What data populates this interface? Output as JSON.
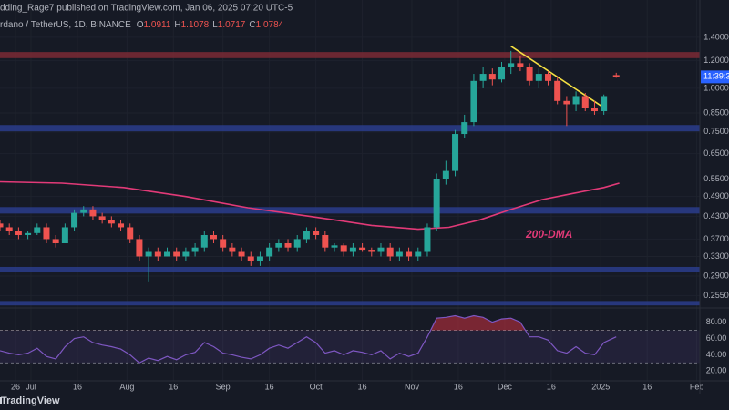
{
  "header": {
    "publisher": "dding_Rage7 published on TradingView.com, Jan 06, 2025 07:20 UTC-5",
    "symbol": "rdano / TetherUS, 1D, BINANCE"
  },
  "chart_data": [
    {
      "type": "candlestick",
      "log_scale": true,
      "grid": true,
      "up_color": "#26a69a",
      "down_color": "#ef5350",
      "ohlc_labels": [
        "O",
        "H",
        "L",
        "C"
      ],
      "x": [
        -10,
        -7,
        -4,
        -1,
        2,
        5,
        8,
        11,
        14,
        17,
        20,
        23,
        26,
        29,
        32,
        35,
        38,
        41,
        44,
        47,
        50,
        53,
        56,
        59,
        62,
        65,
        68,
        71,
        74,
        77,
        80,
        83,
        86,
        89,
        92,
        95,
        98,
        101,
        104,
        107,
        110,
        113,
        116,
        119,
        122,
        125,
        128,
        131,
        134,
        137,
        140,
        143,
        146,
        149,
        152,
        155,
        158,
        161,
        164,
        167,
        170,
        173,
        176,
        179,
        182,
        185,
        189
      ],
      "open": [
        0.41,
        0.4,
        0.39,
        0.38,
        0.385,
        0.4,
        0.37,
        0.36,
        0.4,
        0.44,
        0.45,
        0.43,
        0.42,
        0.41,
        0.4,
        0.37,
        0.33,
        0.34,
        0.33,
        0.34,
        0.33,
        0.34,
        0.35,
        0.38,
        0.37,
        0.35,
        0.34,
        0.33,
        0.32,
        0.33,
        0.35,
        0.36,
        0.35,
        0.37,
        0.39,
        0.38,
        0.35,
        0.355,
        0.34,
        0.35,
        0.345,
        0.34,
        0.35,
        0.33,
        0.34,
        0.33,
        0.34,
        0.4,
        0.55,
        0.58,
        0.74,
        0.8,
        1.05,
        1.1,
        1.06,
        1.15,
        1.18,
        1.15,
        1.05,
        1.1,
        1.05,
        0.92,
        0.9,
        0.95,
        0.88,
        0.86,
        1.0911
      ],
      "high": [
        0.42,
        0.41,
        0.4,
        0.39,
        0.41,
        0.41,
        0.38,
        0.41,
        0.45,
        0.46,
        0.46,
        0.44,
        0.43,
        0.42,
        0.41,
        0.38,
        0.35,
        0.35,
        0.35,
        0.35,
        0.35,
        0.36,
        0.39,
        0.39,
        0.38,
        0.36,
        0.35,
        0.34,
        0.34,
        0.36,
        0.37,
        0.37,
        0.38,
        0.4,
        0.4,
        0.39,
        0.36,
        0.36,
        0.36,
        0.36,
        0.35,
        0.36,
        0.36,
        0.35,
        0.35,
        0.35,
        0.41,
        0.57,
        0.62,
        0.76,
        0.84,
        1.1,
        1.15,
        1.14,
        1.19,
        1.28,
        1.24,
        1.18,
        1.14,
        1.12,
        1.08,
        0.95,
        0.98,
        0.97,
        0.92,
        0.96,
        1.1078
      ],
      "low": [
        0.39,
        0.38,
        0.37,
        0.37,
        0.38,
        0.36,
        0.35,
        0.36,
        0.39,
        0.43,
        0.42,
        0.41,
        0.4,
        0.39,
        0.36,
        0.32,
        0.28,
        0.32,
        0.33,
        0.32,
        0.32,
        0.33,
        0.34,
        0.36,
        0.34,
        0.33,
        0.32,
        0.31,
        0.31,
        0.32,
        0.34,
        0.34,
        0.34,
        0.36,
        0.37,
        0.34,
        0.34,
        0.33,
        0.33,
        0.34,
        0.33,
        0.33,
        0.32,
        0.32,
        0.32,
        0.32,
        0.33,
        0.39,
        0.53,
        0.56,
        0.72,
        0.78,
        1.0,
        1.02,
        1.04,
        1.1,
        1.12,
        1.02,
        1.0,
        1.02,
        0.9,
        0.78,
        0.86,
        0.86,
        0.84,
        0.84,
        1.0717
      ],
      "close": [
        0.4,
        0.39,
        0.38,
        0.385,
        0.4,
        0.37,
        0.36,
        0.4,
        0.44,
        0.45,
        0.43,
        0.42,
        0.41,
        0.4,
        0.37,
        0.33,
        0.34,
        0.33,
        0.34,
        0.33,
        0.34,
        0.35,
        0.38,
        0.37,
        0.35,
        0.34,
        0.33,
        0.32,
        0.33,
        0.35,
        0.36,
        0.35,
        0.37,
        0.39,
        0.38,
        0.35,
        0.355,
        0.34,
        0.35,
        0.345,
        0.34,
        0.35,
        0.33,
        0.34,
        0.33,
        0.34,
        0.4,
        0.55,
        0.58,
        0.74,
        0.8,
        1.05,
        1.1,
        1.06,
        1.15,
        1.18,
        1.15,
        1.05,
        1.1,
        1.05,
        0.92,
        0.9,
        0.95,
        0.88,
        0.86,
        0.95,
        1.0784
      ],
      "zones": [
        {
          "color": "#7a2a35",
          "range": [
            1.22,
            1.27
          ]
        },
        {
          "color": "#2a3d8c",
          "range": [
            0.753,
            0.785
          ]
        },
        {
          "color": "#2a3d8c",
          "range": [
            0.438,
            0.457
          ]
        },
        {
          "color": "#2a3d8c",
          "range": [
            0.297,
            0.308
          ]
        },
        {
          "color": "#2a3d8c",
          "range": [
            0.239,
            0.246
          ]
        }
      ],
      "series": [
        {
          "name": "200-DMA",
          "color": "#e23a78",
          "x": [
            -10,
            10,
            30,
            50,
            70,
            90,
            110,
            125,
            135,
            145,
            155,
            165,
            175,
            185,
            190
          ],
          "values": [
            0.54,
            0.535,
            0.52,
            0.49,
            0.455,
            0.43,
            0.405,
            0.395,
            0.4,
            0.42,
            0.45,
            0.48,
            0.5,
            0.52,
            0.535
          ]
        },
        {
          "color": "#f5e042",
          "x": [
            155,
            185
          ],
          "values": [
            1.32,
            0.88
          ]
        }
      ],
      "countdown": "11:39:3",
      "ylim": [
        0.235,
        1.79
      ],
      "yticks": [
        {
          "value": 0.255,
          "label": "0.2550"
        },
        {
          "value": 0.29,
          "label": "0.2900"
        },
        {
          "value": 0.33,
          "label": "0.3300"
        },
        {
          "value": 0.37,
          "label": "0.3700"
        },
        {
          "value": 0.43,
          "label": "0.4300"
        },
        {
          "value": 0.49,
          "label": "0.4900"
        },
        {
          "value": 0.55,
          "label": "0.5500"
        },
        {
          "value": 0.65,
          "label": "0.6500"
        },
        {
          "value": 0.75,
          "label": "0.7500"
        },
        {
          "value": 0.85,
          "label": "0.8500"
        },
        {
          "value": 1.0,
          "label": "1.0000"
        },
        {
          "value": 1.2,
          "label": "1.2000"
        },
        {
          "value": 1.4,
          "label": "1.4000"
        }
      ]
    },
    {
      "type": "line",
      "color": "#7e57c2",
      "values": [
        45,
        42,
        40,
        42,
        48,
        38,
        35,
        50,
        60,
        62,
        55,
        52,
        50,
        47,
        40,
        30,
        36,
        33,
        38,
        34,
        40,
        43,
        55,
        50,
        42,
        40,
        37,
        35,
        40,
        48,
        52,
        48,
        55,
        62,
        55,
        42,
        45,
        40,
        45,
        43,
        40,
        45,
        35,
        42,
        38,
        42,
        62,
        85,
        86,
        88,
        85,
        88,
        86,
        80,
        84,
        85,
        80,
        62,
        62,
        58,
        45,
        42,
        50,
        42,
        40,
        55,
        62
      ],
      "band": [
        30,
        70
      ],
      "ylim": [
        8,
        97.5
      ],
      "yticks": [
        {
          "value": 20,
          "label": "20.00"
        },
        {
          "value": 40,
          "label": "40.00"
        },
        {
          "value": 60,
          "label": "60.00"
        },
        {
          "value": 80,
          "label": "80.00"
        }
      ],
      "xlim": [
        -10,
        216
      ],
      "xticks": [
        {
          "value": -5,
          "label": "26"
        },
        {
          "value": 0,
          "label": "Jul"
        },
        {
          "value": 15,
          "label": "16"
        },
        {
          "value": 31,
          "label": "Aug"
        },
        {
          "value": 46,
          "label": "16"
        },
        {
          "value": 62,
          "label": "Sep"
        },
        {
          "value": 77,
          "label": "16"
        },
        {
          "value": 92,
          "label": "Oct"
        },
        {
          "value": 107,
          "label": "16"
        },
        {
          "value": 123,
          "label": "Nov"
        },
        {
          "value": 138,
          "label": "16"
        },
        {
          "value": 153,
          "label": "Dec"
        },
        {
          "value": 168,
          "label": "16"
        },
        {
          "value": 184,
          "label": "2025"
        },
        {
          "value": 199,
          "label": "16"
        },
        {
          "value": 215,
          "label": "Feb"
        }
      ]
    }
  ],
  "footer": {
    "brand": "TradingView"
  }
}
